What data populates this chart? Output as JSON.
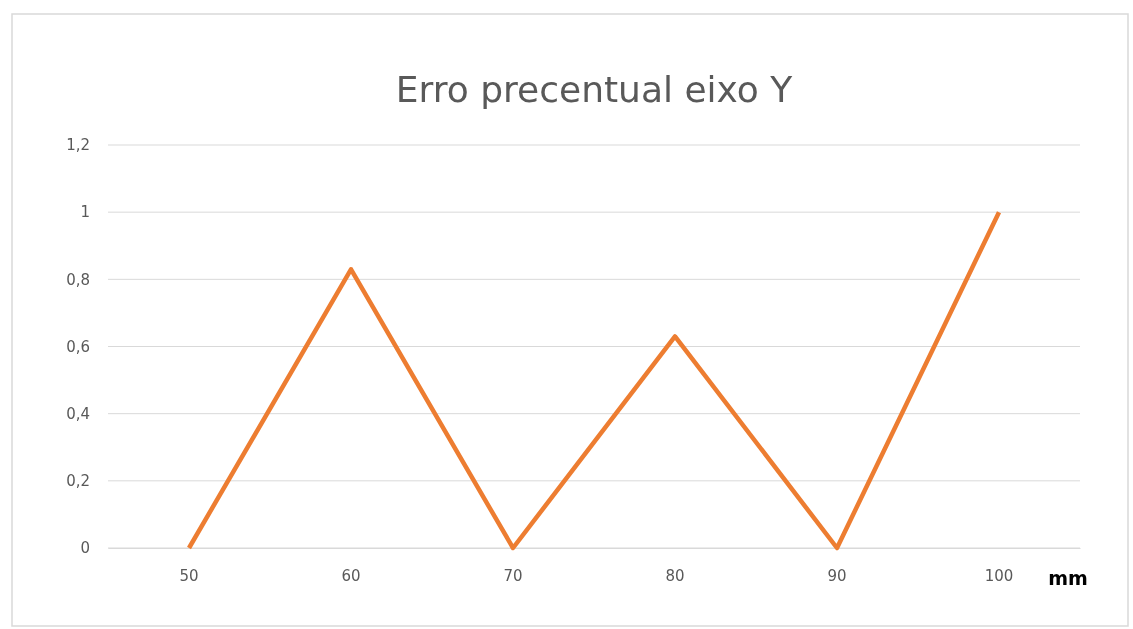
{
  "chart_data": {
    "type": "line",
    "title": "Erro precentual eixo Y",
    "xlabel": "mm",
    "categories": [
      "50",
      "60",
      "70",
      "80",
      "90",
      "100"
    ],
    "series": [
      {
        "color": "#ed7d31",
        "values": [
          0,
          0.83,
          0,
          0.63,
          0,
          1
        ]
      }
    ],
    "ylim": [
      0,
      1.2
    ],
    "yticks": [
      {
        "value": 0,
        "label": "0"
      },
      {
        "value": 0.2,
        "label": "0,2"
      },
      {
        "value": 0.4,
        "label": "0,4"
      },
      {
        "value": 0.6,
        "label": "0,6"
      },
      {
        "value": 0.8,
        "label": "0,8"
      },
      {
        "value": 1,
        "label": "1"
      },
      {
        "value": 1.2,
        "label": "1,2"
      }
    ],
    "grid": "y",
    "marker": "none",
    "line_style": "solid"
  }
}
